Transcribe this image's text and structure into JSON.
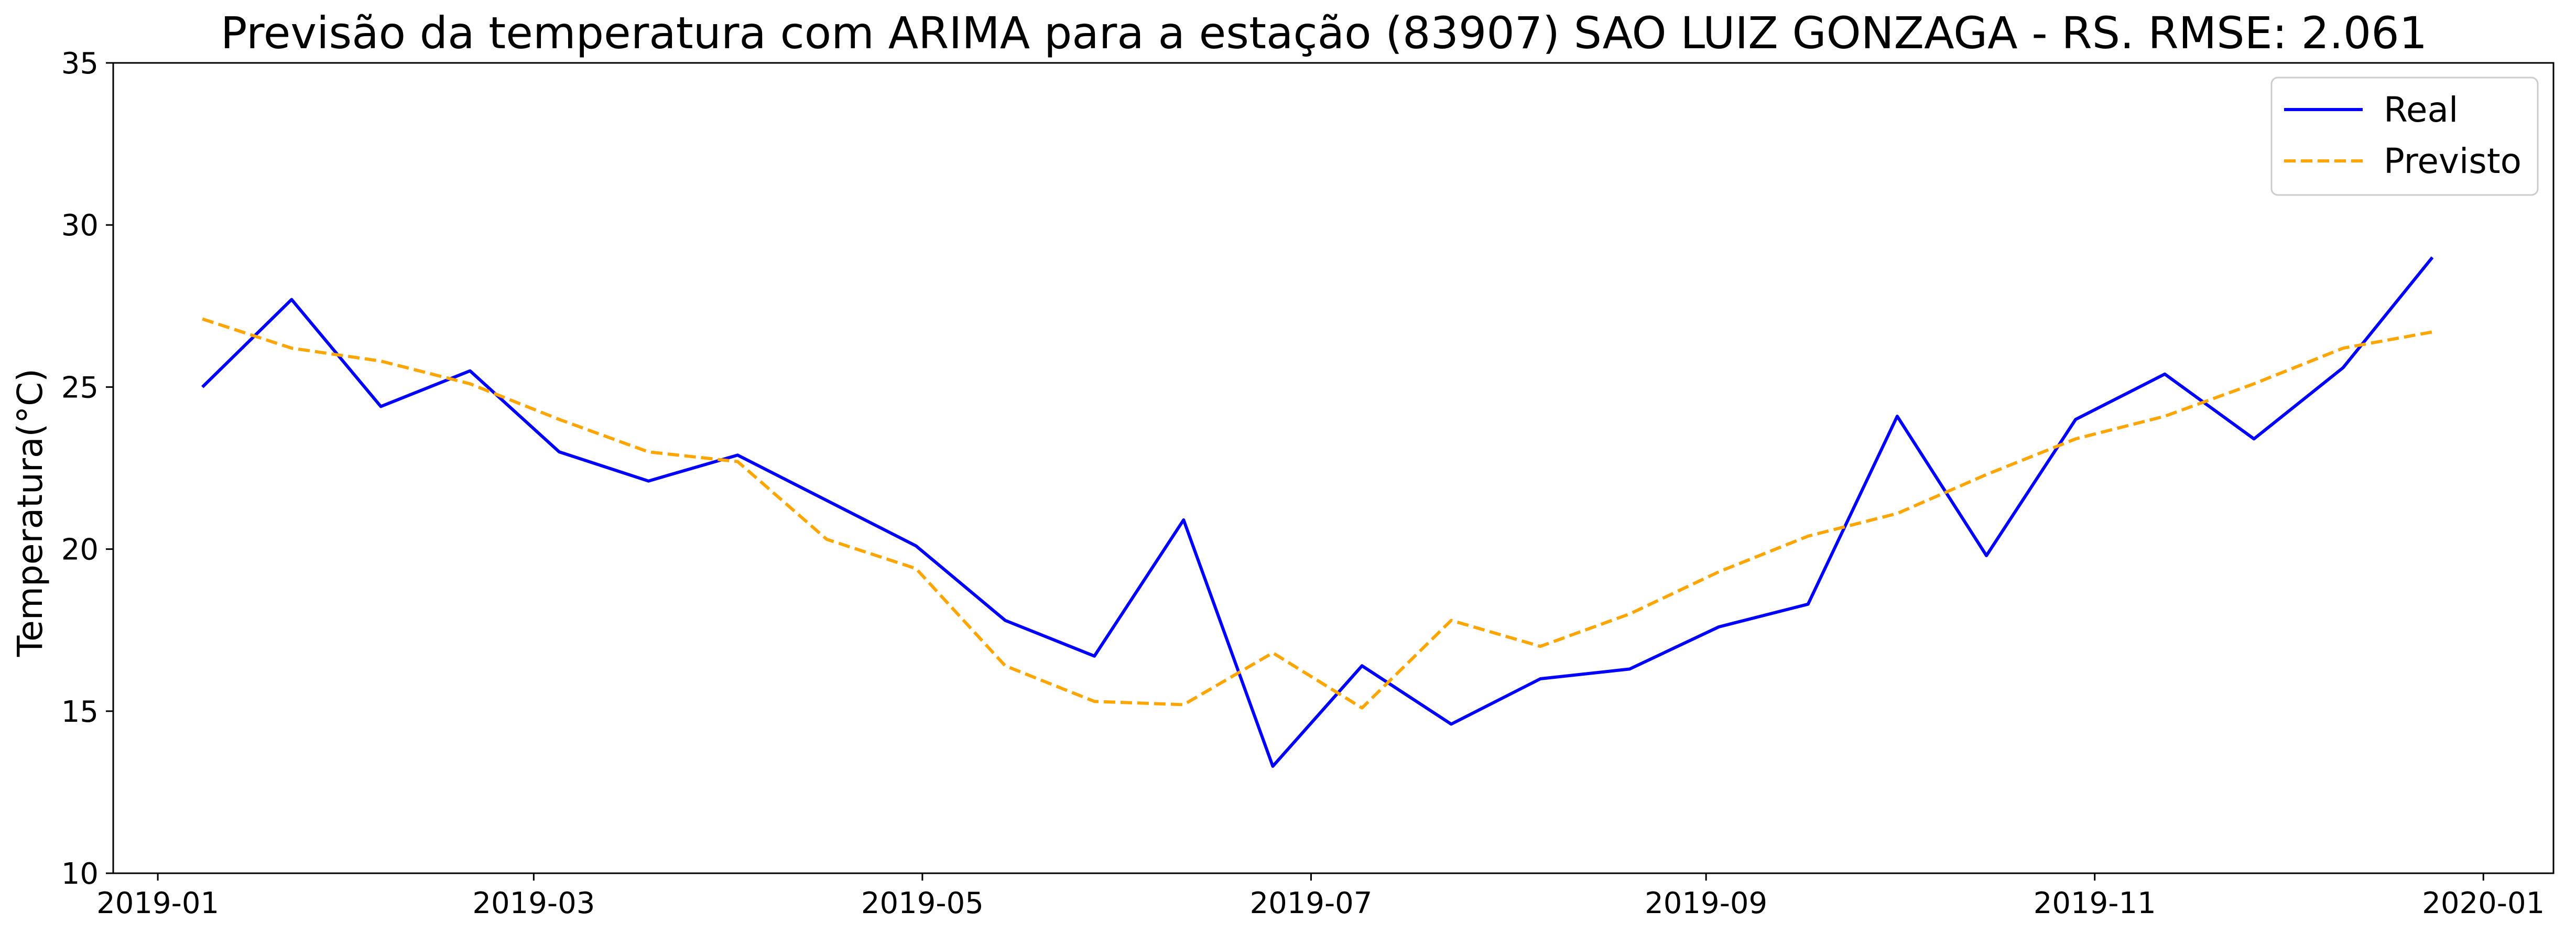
{
  "chart_data": {
    "type": "line",
    "title": "Previsão da temperatura com ARIMA para a estação (83907) SAO LUIZ GONZAGA - RS. RMSE: 2.061",
    "xlabel": "",
    "ylabel": "Temperatura(°C)",
    "ylim": [
      10,
      35
    ],
    "xlim": [
      "2018-12-25",
      "2020-01-12"
    ],
    "yticks": [
      10,
      15,
      20,
      25,
      30,
      35
    ],
    "xticks": [
      "2019-01-01",
      "2019-03-01",
      "2019-05-01",
      "2019-07-01",
      "2019-09-01",
      "2019-11-01",
      "2020-01-01"
    ],
    "xtick_labels": [
      "2019-01",
      "2019-03",
      "2019-05",
      "2019-07",
      "2019-09",
      "2019-11",
      "2020-01"
    ],
    "grid": false,
    "legend_position": "top-right",
    "x": [
      "2019-01-08",
      "2019-01-22",
      "2019-02-05",
      "2019-02-19",
      "2019-03-05",
      "2019-03-19",
      "2019-04-02",
      "2019-04-16",
      "2019-04-30",
      "2019-05-14",
      "2019-05-28",
      "2019-06-11",
      "2019-06-25",
      "2019-07-09",
      "2019-07-23",
      "2019-08-06",
      "2019-08-20",
      "2019-09-03",
      "2019-09-17",
      "2019-10-01",
      "2019-10-15",
      "2019-10-29",
      "2019-11-12",
      "2019-11-26",
      "2019-12-10",
      "2019-12-24"
    ],
    "series": [
      {
        "name": "Real",
        "color": "#0000ff",
        "dash": "solid",
        "values": [
          25.0,
          27.7,
          24.4,
          25.5,
          23.0,
          22.1,
          22.9,
          21.5,
          20.1,
          17.8,
          16.7,
          20.9,
          13.3,
          16.4,
          14.6,
          16.0,
          16.3,
          17.6,
          18.3,
          24.1,
          19.8,
          24.0,
          25.4,
          23.4,
          25.6,
          29.0
        ]
      },
      {
        "name": "Previsto",
        "color": "#ffa500",
        "dash": "dashed",
        "values": [
          27.1,
          26.2,
          25.8,
          25.1,
          24.0,
          23.0,
          22.7,
          20.3,
          19.4,
          16.4,
          15.3,
          15.2,
          16.8,
          15.1,
          17.8,
          17.0,
          18.0,
          19.3,
          20.4,
          21.1,
          22.3,
          23.4,
          24.1,
          25.1,
          26.2,
          26.7
        ]
      }
    ]
  }
}
